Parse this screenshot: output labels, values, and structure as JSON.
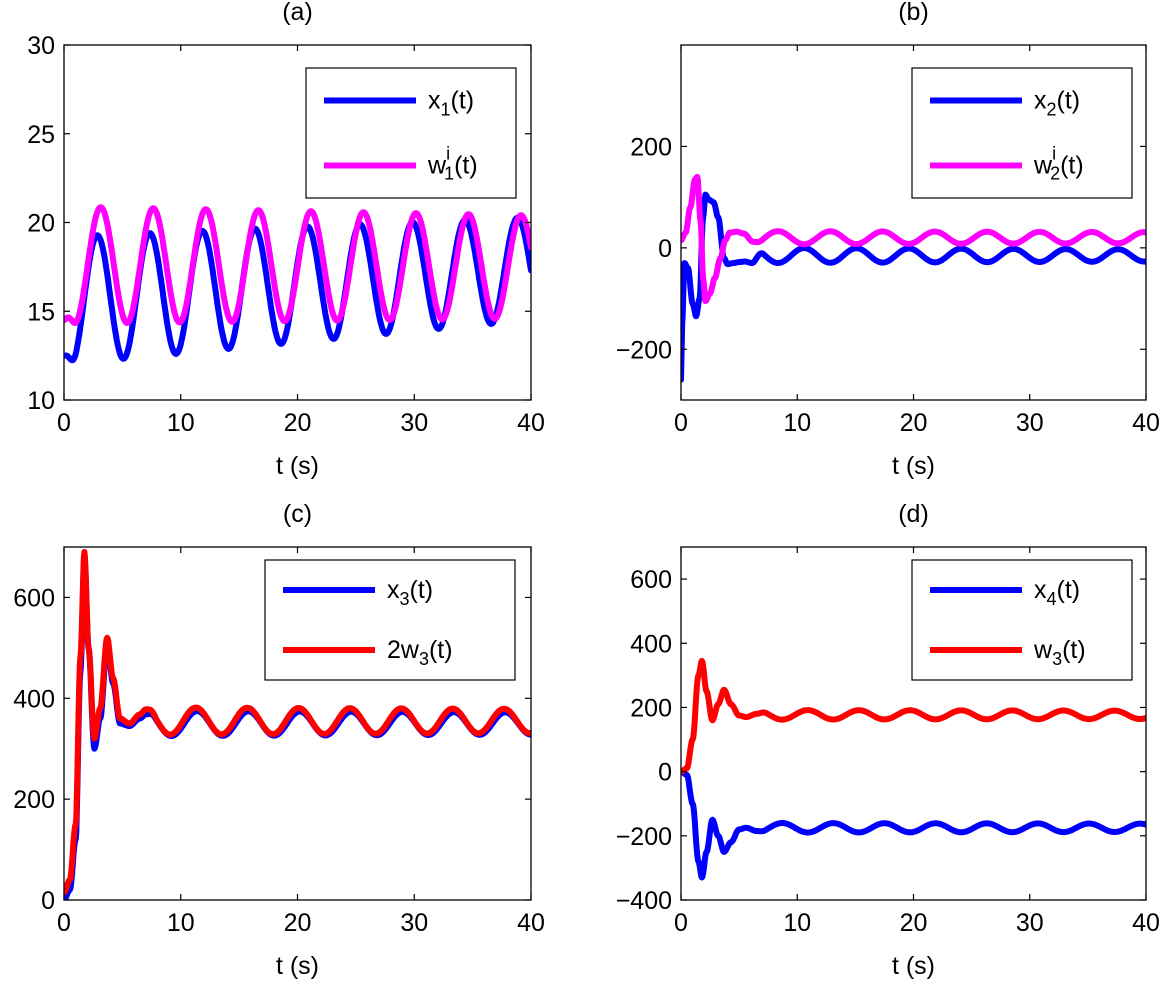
{
  "figure": {
    "title": ""
  },
  "chart_data": [
    {
      "id": "a",
      "type": "line",
      "title": "(a)",
      "xlabel": "t (s)",
      "ylabel": "",
      "xlim": [
        0,
        40
      ],
      "ylim": [
        10,
        30
      ],
      "xticks": [
        0,
        10,
        20,
        30,
        40
      ],
      "yticks": [
        10,
        15,
        20,
        25,
        30
      ],
      "xtick_labels": [
        "0",
        "10",
        "20",
        "30",
        "40"
      ],
      "ytick_labels": [
        "10",
        "15",
        "20",
        "25",
        "30"
      ],
      "legend_position": "top-right",
      "series": [
        {
          "name": "x_1(t)",
          "legend": {
            "base": "x",
            "sub": "1",
            "sup": "",
            "pre": "",
            "post": "(t)"
          },
          "color": "#0000ff",
          "model": {
            "kind": "sine",
            "mean_start": 15.6,
            "mean_end": 17.4,
            "amp_start": 3.6,
            "amp_end": 2.9,
            "period": 4.5,
            "phase": 0.6,
            "t0": 0.5,
            "v0": 12.5
          }
        },
        {
          "name": "w_1^i(t)",
          "legend": {
            "base": "w",
            "sub": "1",
            "sup": "i",
            "pre": "",
            "post": "(t)"
          },
          "color": "#ff00ff",
          "model": {
            "kind": "sine",
            "mean_start": 17.6,
            "mean_end": 17.5,
            "amp_start": 3.3,
            "amp_end": 2.9,
            "period": 4.5,
            "phase": 0.9,
            "t0": 0.3,
            "v0": 14.5
          }
        }
      ]
    },
    {
      "id": "b",
      "type": "line",
      "title": "(b)",
      "xlabel": "t (s)",
      "ylabel": "",
      "xlim": [
        0,
        40
      ],
      "ylim": [
        -300,
        400
      ],
      "xticks": [
        0,
        10,
        20,
        30,
        40
      ],
      "yticks": [
        -200,
        0,
        200
      ],
      "xtick_labels": [
        "0",
        "10",
        "20",
        "30",
        "40"
      ],
      "ytick_labels": [
        "−200",
        "0",
        "200"
      ],
      "legend_position": "top-right",
      "series": [
        {
          "name": "x_2(t)",
          "legend": {
            "base": "x",
            "sub": "2",
            "sup": "",
            "pre": "",
            "post": "(t)"
          },
          "color": "#0000ff",
          "model": {
            "kind": "transient",
            "points": [
              [
                0,
                -260
              ],
              [
                0.1,
                -150
              ],
              [
                0.3,
                -30
              ],
              [
                0.6,
                -40
              ],
              [
                1.0,
                -110
              ],
              [
                1.3,
                -135
              ],
              [
                1.6,
                -100
              ],
              [
                1.9,
                60
              ],
              [
                2.1,
                105
              ],
              [
                2.4,
                95
              ],
              [
                2.8,
                90
              ],
              [
                3.2,
                60
              ],
              [
                3.7,
                -20
              ],
              [
                4.0,
                -32
              ],
              [
                4.5,
                -30
              ],
              [
                5.0,
                -28
              ],
              [
                5.5,
                -27
              ],
              [
                6.1,
                -30
              ]
            ],
            "t_osc": 6.1,
            "mean": -15,
            "amp_start": 15,
            "amp_end": 12,
            "period": 4.5,
            "phase": 0
          }
        },
        {
          "name": "w_2^i(t)",
          "legend": {
            "base": "w",
            "sub": "2",
            "sup": "i",
            "pre": "",
            "post": "(t)"
          },
          "color": "#ff00ff",
          "model": {
            "kind": "transient",
            "points": [
              [
                0,
                15
              ],
              [
                0.4,
                30
              ],
              [
                0.8,
                80
              ],
              [
                1.2,
                135
              ],
              [
                1.4,
                140
              ],
              [
                1.7,
                50
              ],
              [
                1.9,
                -60
              ],
              [
                2.1,
                -105
              ],
              [
                2.5,
                -90
              ],
              [
                2.9,
                -60
              ],
              [
                3.4,
                -20
              ],
              [
                3.8,
                15
              ],
              [
                4.2,
                30
              ],
              [
                4.8,
                32
              ],
              [
                5.4,
                28
              ],
              [
                6.2,
                12
              ]
            ],
            "t_osc": 6.2,
            "mean": 20,
            "amp_start": 13,
            "amp_end": 11,
            "period": 4.5,
            "phase": 3.3
          }
        }
      ]
    },
    {
      "id": "c",
      "type": "line",
      "title": "(c)",
      "xlabel": "t (s)",
      "ylabel": "",
      "xlim": [
        0,
        40
      ],
      "ylim": [
        0,
        700
      ],
      "xticks": [
        0,
        10,
        20,
        30,
        40
      ],
      "yticks": [
        0,
        200,
        400,
        600
      ],
      "xtick_labels": [
        "0",
        "10",
        "20",
        "30",
        "40"
      ],
      "ytick_labels": [
        "0",
        "200",
        "400",
        "600"
      ],
      "legend_position": "top-right",
      "series": [
        {
          "name": "x_3(t)",
          "legend": {
            "base": "x",
            "sub": "3",
            "sup": "",
            "pre": "",
            "post": "(t)"
          },
          "color": "#0000ff",
          "model": {
            "kind": "transient",
            "points": [
              [
                0,
                0
              ],
              [
                0.5,
                20
              ],
              [
                1.0,
                120
              ],
              [
                1.4,
                450
              ],
              [
                1.75,
                680
              ],
              [
                2.1,
                500
              ],
              [
                2.6,
                300
              ],
              [
                3.1,
                360
              ],
              [
                3.7,
                510
              ],
              [
                4.2,
                430
              ],
              [
                4.8,
                350
              ],
              [
                5.6,
                345
              ],
              [
                6.5,
                360
              ],
              [
                7.0,
                368
              ]
            ],
            "t_osc": 7.0,
            "mean": 350,
            "amp_start": 25,
            "amp_end": 22,
            "period": 4.4,
            "phase": 0
          }
        },
        {
          "name": "2w_3(t)",
          "legend": {
            "base": "w",
            "sub": "3",
            "sup": "",
            "pre": "2",
            "post": "(t)"
          },
          "color": "#ff0000",
          "model": {
            "kind": "transient",
            "points": [
              [
                0,
                15
              ],
              [
                0.5,
                40
              ],
              [
                1.0,
                150
              ],
              [
                1.4,
                480
              ],
              [
                1.75,
                690
              ],
              [
                2.1,
                500
              ],
              [
                2.6,
                320
              ],
              [
                3.1,
                380
              ],
              [
                3.7,
                520
              ],
              [
                4.2,
                440
              ],
              [
                4.8,
                360
              ],
              [
                5.6,
                350
              ],
              [
                6.5,
                368
              ],
              [
                7.0,
                378
              ]
            ],
            "t_osc": 7.0,
            "mean": 355,
            "amp_start": 27,
            "amp_end": 24,
            "period": 4.4,
            "phase": 0.15
          }
        }
      ]
    },
    {
      "id": "d",
      "type": "line",
      "title": "(d)",
      "xlabel": "t (s)",
      "ylabel": "",
      "xlim": [
        0,
        40
      ],
      "ylim": [
        -400,
        700
      ],
      "xticks": [
        0,
        10,
        20,
        30,
        40
      ],
      "yticks": [
        -400,
        -200,
        0,
        200,
        400,
        600
      ],
      "xtick_labels": [
        "0",
        "10",
        "20",
        "30",
        "40"
      ],
      "ytick_labels": [
        "−400",
        "−200",
        "0",
        "200",
        "400",
        "600"
      ],
      "legend_position": "top-right",
      "series": [
        {
          "name": "x_4(t)",
          "legend": {
            "base": "x",
            "sub": "4",
            "sup": "",
            "pre": "",
            "post": "(t)"
          },
          "color": "#0000ff",
          "model": {
            "kind": "transient",
            "points": [
              [
                0,
                0
              ],
              [
                0.5,
                -10
              ],
              [
                1.0,
                -100
              ],
              [
                1.5,
                -280
              ],
              [
                1.8,
                -330
              ],
              [
                2.2,
                -250
              ],
              [
                2.7,
                -150
              ],
              [
                3.2,
                -200
              ],
              [
                3.7,
                -250
              ],
              [
                4.3,
                -220
              ],
              [
                5.0,
                -180
              ],
              [
                5.6,
                -175
              ],
              [
                6.5,
                -185
              ]
            ],
            "t_osc": 6.5,
            "mean": -175,
            "amp_start": 15,
            "amp_end": 13,
            "period": 4.4,
            "phase": 3.14
          }
        },
        {
          "name": "w_3(t)",
          "legend": {
            "base": "w",
            "sub": "3",
            "sup": "",
            "pre": "",
            "post": "(t)"
          },
          "color": "#ff0000",
          "model": {
            "kind": "transient",
            "points": [
              [
                0,
                0
              ],
              [
                0.5,
                10
              ],
              [
                1.0,
                100
              ],
              [
                1.5,
                300
              ],
              [
                1.8,
                345
              ],
              [
                2.2,
                250
              ],
              [
                2.7,
                160
              ],
              [
                3.2,
                210
              ],
              [
                3.7,
                255
              ],
              [
                4.3,
                210
              ],
              [
                5.0,
                175
              ],
              [
                5.6,
                170
              ],
              [
                6.5,
                180
              ]
            ],
            "t_osc": 6.5,
            "mean": 177,
            "amp_start": 15,
            "amp_end": 13,
            "period": 4.4,
            "phase": 0
          }
        }
      ]
    }
  ]
}
